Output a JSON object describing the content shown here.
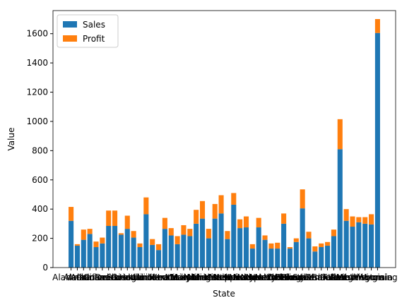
{
  "chart_data": {
    "type": "bar",
    "stacked": true,
    "x_label": "State",
    "y_label": "Value",
    "categories": [
      "Alabama",
      "Alaska",
      "Arizona",
      "Arkansas",
      "California",
      "Colorado",
      "Connecticut",
      "Delaware",
      "Florida",
      "Georgia",
      "Hawaii",
      "Idaho",
      "Illinois",
      "Indiana",
      "Iowa",
      "Kansas",
      "Kentucky",
      "Louisiana",
      "Maine",
      "Maryland",
      "Massachusetts",
      "Michigan",
      "Minnesota",
      "Mississippi",
      "Missouri",
      "Montana",
      "Nebraska",
      "Nevada",
      "New Hampshire",
      "New Jersey",
      "New Mexico",
      "New York",
      "North Carolina",
      "North Dakota",
      "Ohio",
      "Oklahoma",
      "Oregon",
      "Pennsylvania",
      "Rhode Island",
      "South Carolina",
      "South Dakota",
      "Tennessee",
      "Texas",
      "Utah",
      "Vermont",
      "Virginia",
      "Washington",
      "West Virginia",
      "Wisconsin",
      "Wyoming"
    ],
    "series": [
      {
        "name": "Sales",
        "color": "#1f77b4",
        "values": [
          320,
          150,
          190,
          230,
          140,
          165,
          285,
          285,
          225,
          265,
          205,
          140,
          365,
          155,
          120,
          265,
          220,
          160,
          225,
          215,
          300,
          335,
          200,
          335,
          370,
          195,
          430,
          270,
          275,
          130,
          275,
          190,
          130,
          130,
          300,
          130,
          175,
          405,
          200,
          110,
          140,
          150,
          215,
          810,
          320,
          280,
          310,
          300,
          295,
          1605
        ]
      },
      {
        "name": "Profit",
        "color": "#ff7f0e",
        "values": [
          95,
          10,
          70,
          35,
          38,
          40,
          105,
          105,
          10,
          90,
          45,
          25,
          115,
          40,
          40,
          75,
          50,
          55,
          65,
          50,
          95,
          120,
          65,
          100,
          125,
          55,
          80,
          60,
          75,
          30,
          65,
          30,
          35,
          40,
          70,
          10,
          25,
          130,
          45,
          35,
          25,
          25,
          45,
          205,
          80,
          70,
          35,
          45,
          70,
          95
        ]
      }
    ],
    "ylim": [
      0,
      1758
    ],
    "yticks": [
      0,
      200,
      400,
      600,
      800,
      1000,
      1200,
      1400,
      1600
    ],
    "legend": "upper left"
  }
}
